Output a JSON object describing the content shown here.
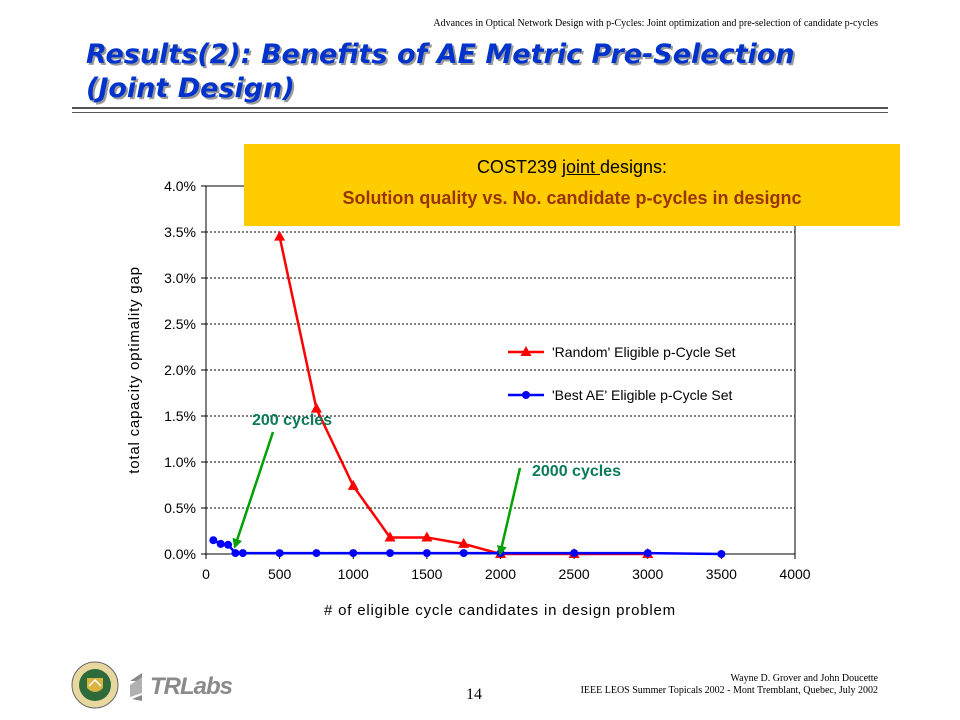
{
  "header": {
    "running_title": "Advances in Optical Network Design with p-Cycles: Joint optimization and pre-selection of candidate p-cycles"
  },
  "slide": {
    "title_line1": "Results(2): Benefits of AE Metric Pre-Selection",
    "title_line2": "(Joint Design)"
  },
  "callout": {
    "line1_pre": "COST239 ",
    "line1_underlined": "joint ",
    "line1_post": "designs:",
    "line2": "Solution quality vs. No. candidate p-cycles in designc"
  },
  "chart_data": {
    "type": "line",
    "xlabel": "# of eligible cycle candidates in design problem",
    "ylabel": "total capacity optimality gap",
    "xlim": [
      0,
      4000
    ],
    "ylim": [
      0,
      4.0
    ],
    "x_ticks": [
      "0",
      "500",
      "1000",
      "1500",
      "2000",
      "2500",
      "3000",
      "3500",
      "4000"
    ],
    "y_ticks": [
      "0.0%",
      "0.5%",
      "1.0%",
      "1.5%",
      "2.0%",
      "2.5%",
      "3.0%",
      "3.5%",
      "4.0%"
    ],
    "grid": "horizontal",
    "legend_position": "right",
    "series": [
      {
        "name": "'Random' Eligible p-Cycle Set",
        "color": "#ff0000",
        "marker": "triangle",
        "x": [
          500,
          750,
          1000,
          1250,
          1500,
          1750,
          2000,
          2500,
          3000
        ],
        "y": [
          3.45,
          1.58,
          0.74,
          0.18,
          0.18,
          0.11,
          0.0,
          0.0,
          0.0
        ]
      },
      {
        "name": "'Best AE' Eligible p-Cycle Set",
        "color": "#0000ff",
        "marker": "circle",
        "x": [
          50,
          100,
          150,
          200,
          250,
          500,
          750,
          1000,
          1250,
          1500,
          1750,
          2000,
          2500,
          3000,
          3500
        ],
        "y": [
          0.15,
          0.11,
          0.1,
          0.01,
          0.01,
          0.01,
          0.01,
          0.01,
          0.01,
          0.01,
          0.01,
          0.01,
          0.01,
          0.01,
          0.0
        ]
      }
    ],
    "annotations": [
      {
        "text": "200 cycles",
        "color": "#0a7a5a",
        "arrow_color": "#00a000",
        "points_to_x": 200
      },
      {
        "text": "2000 cycles",
        "color": "#0a7a5a",
        "arrow_color": "#00a000",
        "points_to_x": 2000
      }
    ]
  },
  "footer": {
    "authors": "Wayne D. Grover and John Doucette",
    "venue": "IEEE LEOS Summer Topicals 2002 - Mont Tremblant, Quebec, July 2002",
    "page_number": "14",
    "logo_text": "TRLabs"
  }
}
